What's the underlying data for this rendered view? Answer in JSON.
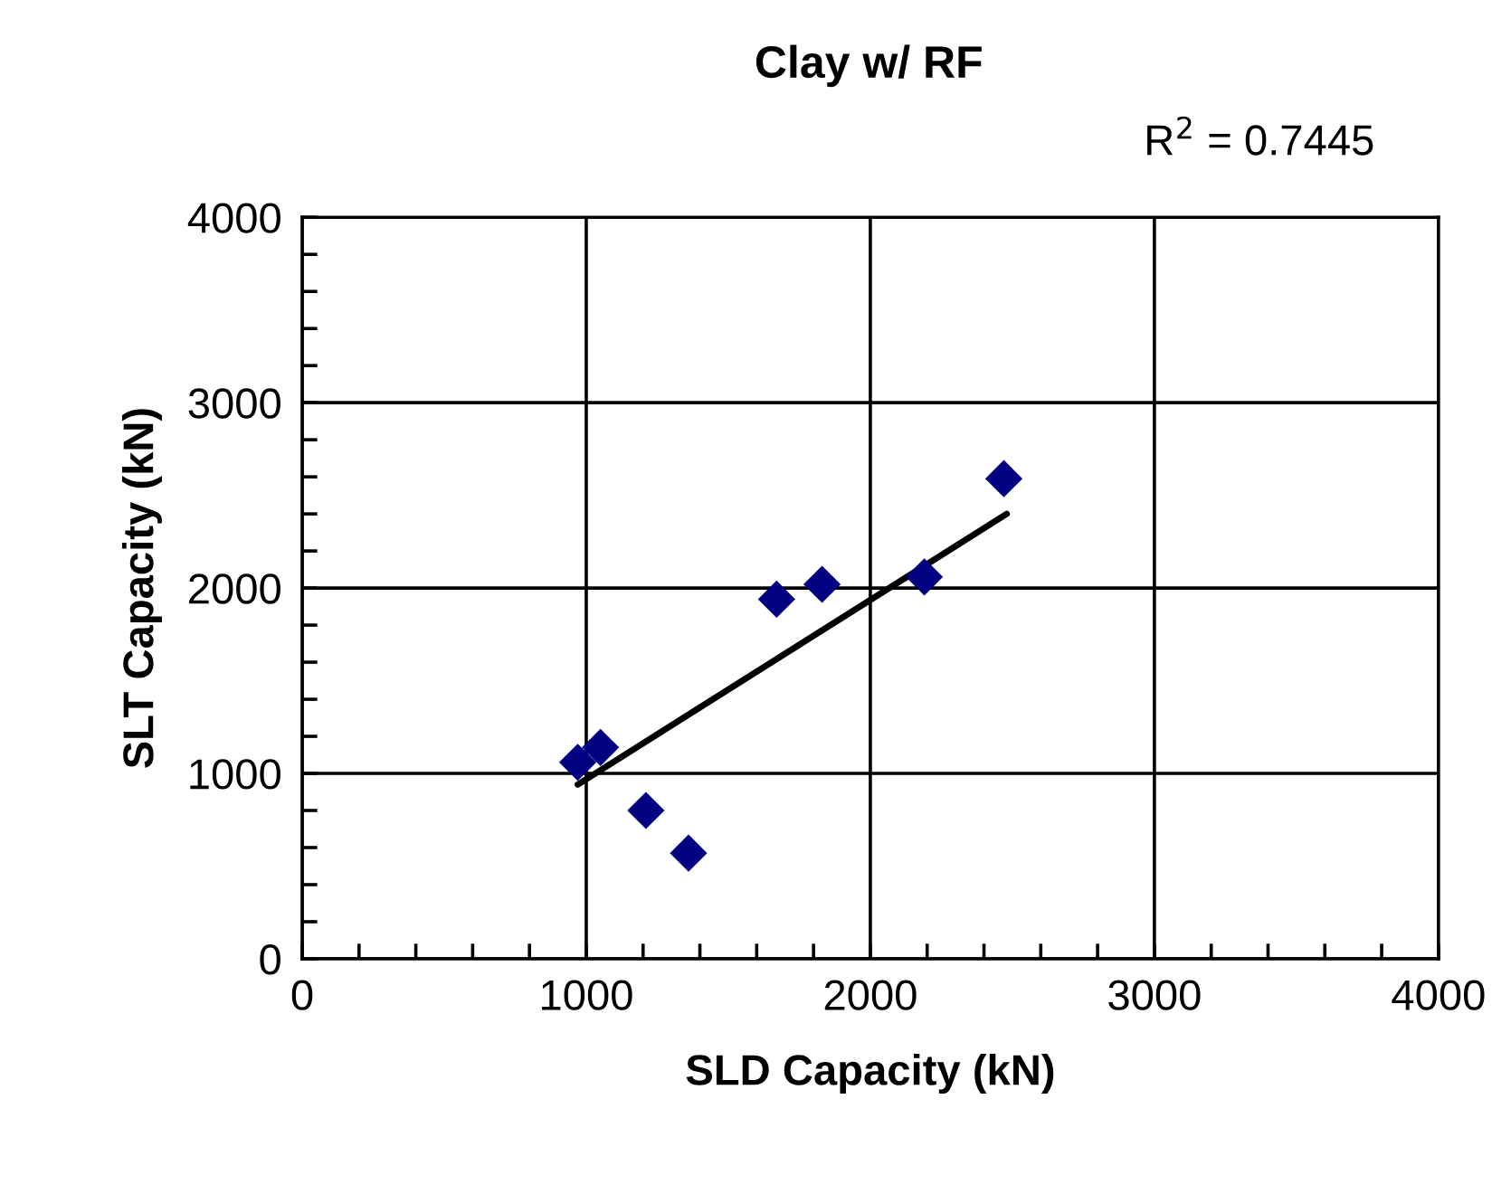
{
  "chart_data": {
    "type": "scatter",
    "title": "Clay w/ RF",
    "xlabel": "SLD Capacity (kN)",
    "ylabel": "SLT Capacity (kN)",
    "annotations": [
      "R$^{2}$ = 0.7445"
    ],
    "series": [
      {
        "color": "#000080",
        "marker": "diamond",
        "x": [
          970,
          1050,
          1210,
          1360,
          1670,
          1830,
          2190,
          2470
        ],
        "values": [
          1060,
          1140,
          800,
          570,
          1940,
          2020,
          2060,
          2590
        ]
      },
      {
        "type": "line",
        "color": "#000000",
        "marker": "none",
        "line_style": "solid",
        "x": [
          970,
          2480
        ],
        "values": [
          940,
          2400
        ]
      }
    ],
    "xlim": [
      0,
      4000
    ],
    "ylim": [
      0,
      4000
    ],
    "xticks": [
      0,
      1000,
      2000,
      3000,
      4000
    ],
    "yticks": [
      0,
      1000,
      2000,
      3000,
      4000
    ],
    "grid": true
  }
}
